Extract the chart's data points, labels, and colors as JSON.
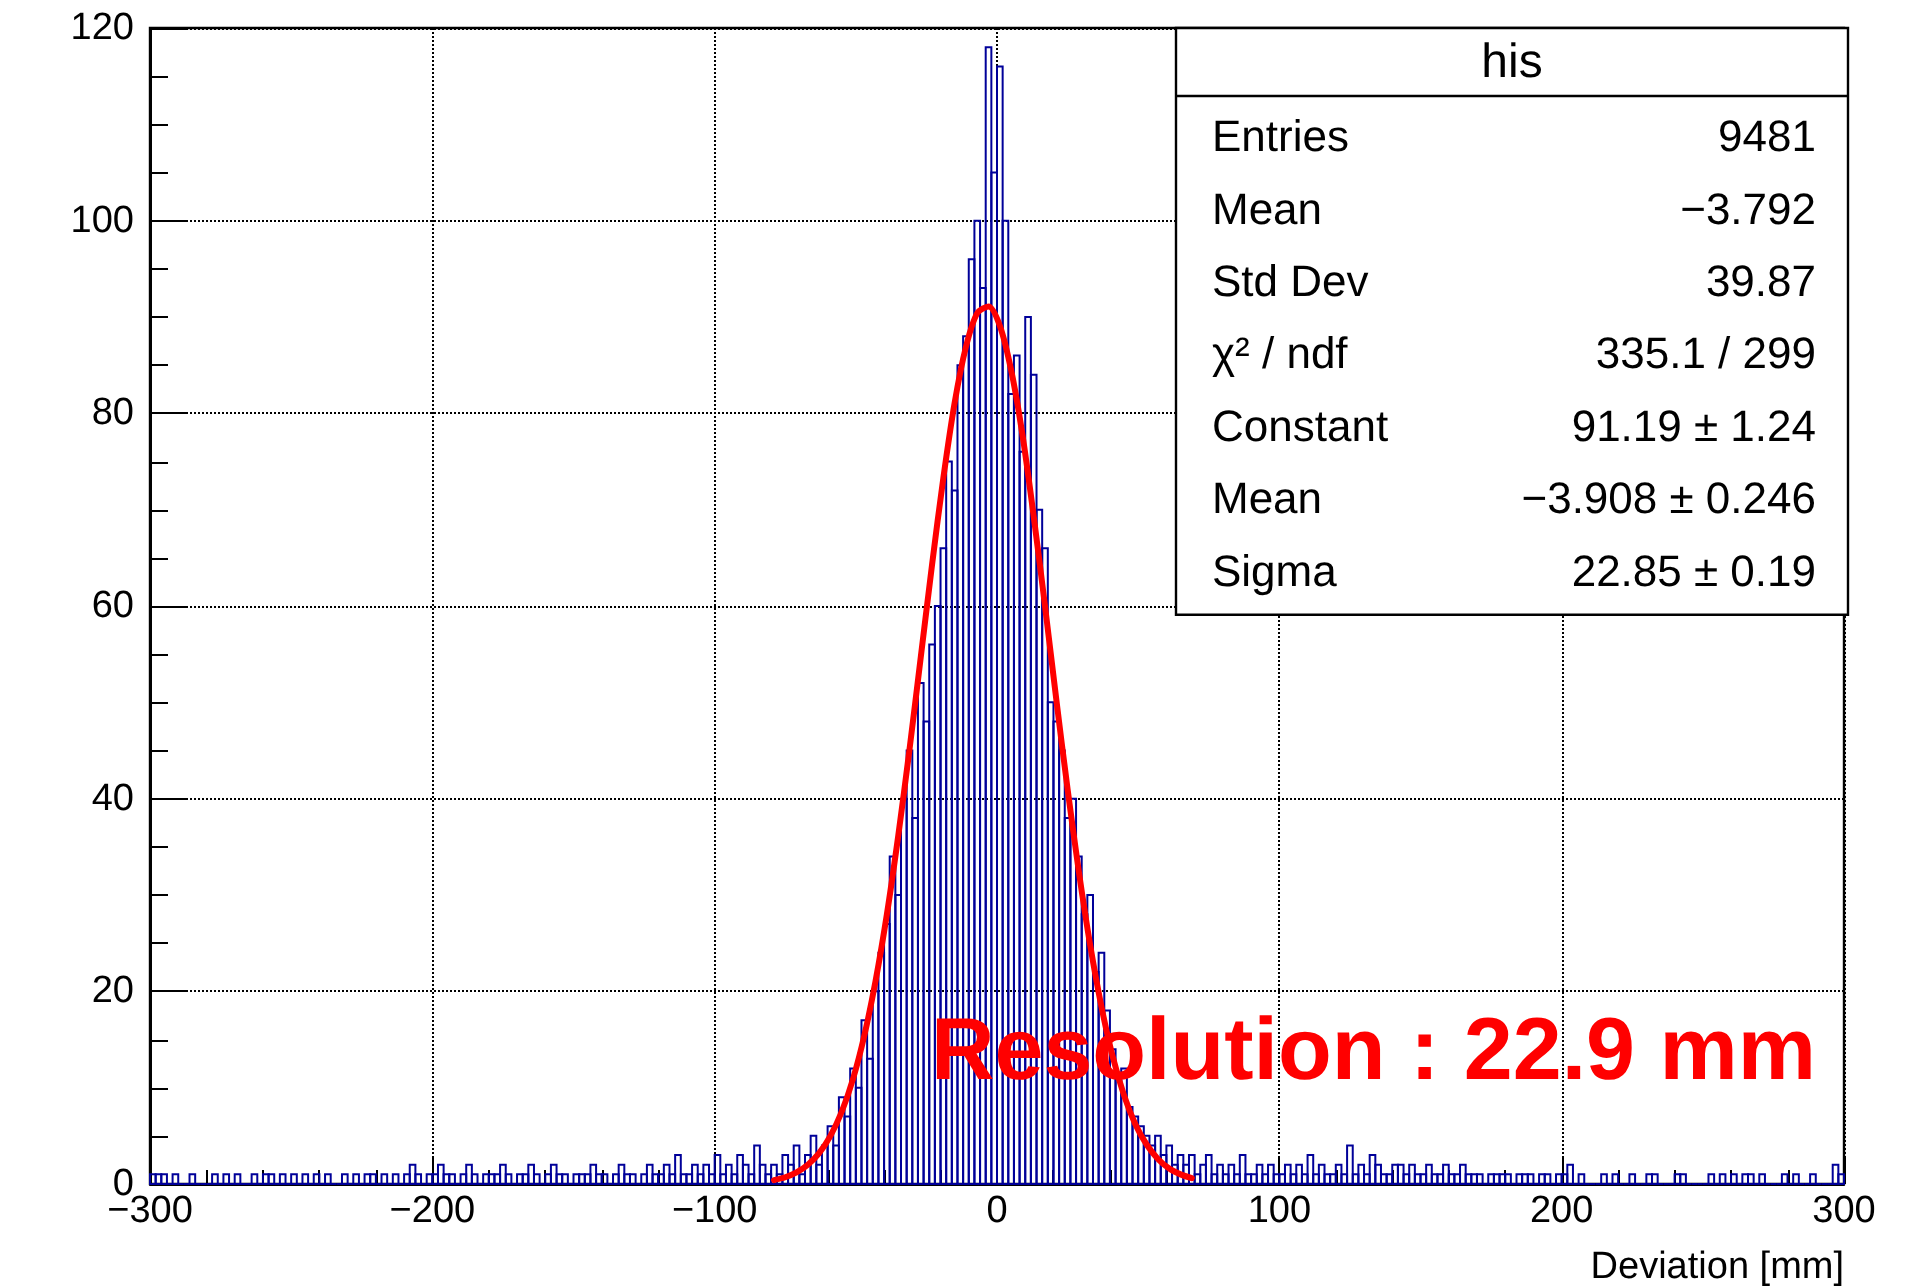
{
  "chart_data": {
    "type": "histogram",
    "xlabel": "Deviation [mm]",
    "bins": [
      -300,
      -298,
      -296,
      -294,
      -292,
      -290,
      -288,
      -286,
      -284,
      -282,
      -280,
      -278,
      -276,
      -274,
      -272,
      -270,
      -268,
      -266,
      -264,
      -262,
      -260,
      -258,
      -256,
      -254,
      -252,
      -250,
      -248,
      -246,
      -244,
      -242,
      -240,
      -238,
      -236,
      -234,
      -232,
      -230,
      -228,
      -226,
      -224,
      -222,
      -220,
      -218,
      -216,
      -214,
      -212,
      -210,
      -208,
      -206,
      -204,
      -202,
      -200,
      -198,
      -196,
      -194,
      -192,
      -190,
      -188,
      -186,
      -184,
      -182,
      -180,
      -178,
      -176,
      -174,
      -172,
      -170,
      -168,
      -166,
      -164,
      -162,
      -160,
      -158,
      -156,
      -154,
      -152,
      -150,
      -148,
      -146,
      -144,
      -142,
      -140,
      -138,
      -136,
      -134,
      -132,
      -130,
      -128,
      -126,
      -124,
      -122,
      -120,
      -118,
      -116,
      -114,
      -112,
      -110,
      -108,
      -106,
      -104,
      -102,
      -100,
      -98,
      -96,
      -94,
      -92,
      -90,
      -88,
      -86,
      -84,
      -82,
      -80,
      -78,
      -76,
      -74,
      -72,
      -70,
      -68,
      -66,
      -64,
      -62,
      -60,
      -58,
      -56,
      -54,
      -52,
      -50,
      -48,
      -46,
      -44,
      -42,
      -40,
      -38,
      -36,
      -34,
      -32,
      -30,
      -28,
      -26,
      -24,
      -22,
      -20,
      -18,
      -16,
      -14,
      -12,
      -10,
      -8,
      -6,
      -4,
      -2,
      0,
      2,
      4,
      6,
      8,
      10,
      12,
      14,
      16,
      18,
      20,
      22,
      24,
      26,
      28,
      30,
      32,
      34,
      36,
      38,
      40,
      42,
      44,
      46,
      48,
      50,
      52,
      54,
      56,
      58,
      60,
      62,
      64,
      66,
      68,
      70,
      72,
      74,
      76,
      78,
      80,
      82,
      84,
      86,
      88,
      90,
      92,
      94,
      96,
      98,
      100,
      102,
      104,
      106,
      108,
      110,
      112,
      114,
      116,
      118,
      120,
      122,
      124,
      126,
      128,
      130,
      132,
      134,
      136,
      138,
      140,
      142,
      144,
      146,
      148,
      150,
      152,
      154,
      156,
      158,
      160,
      162,
      164,
      166,
      168,
      170,
      172,
      174,
      176,
      178,
      180,
      182,
      184,
      186,
      188,
      190,
      192,
      194,
      196,
      198,
      200,
      202,
      204,
      206,
      208,
      210,
      212,
      214,
      216,
      218,
      220,
      222,
      224,
      226,
      228,
      230,
      232,
      234,
      236,
      238,
      240,
      242,
      244,
      246,
      248,
      250,
      252,
      254,
      256,
      258,
      260,
      262,
      264,
      266,
      268,
      270,
      272,
      274,
      276,
      278,
      280,
      282,
      284,
      286,
      288,
      290,
      292,
      294,
      296,
      298,
      300
    ],
    "series": [
      {
        "color": "#000099",
        "values": [
          1,
          1,
          1,
          0,
          1,
          0,
          0,
          1,
          0,
          0,
          0,
          1,
          0,
          1,
          0,
          1,
          0,
          0,
          1,
          0,
          1,
          1,
          0,
          1,
          0,
          1,
          0,
          1,
          0,
          1,
          0,
          1,
          0,
          0,
          1,
          0,
          1,
          0,
          1,
          1,
          0,
          1,
          0,
          1,
          0,
          1,
          2,
          1,
          0,
          1,
          1,
          2,
          1,
          1,
          0,
          1,
          2,
          1,
          0,
          1,
          1,
          1,
          2,
          1,
          0,
          1,
          1,
          2,
          1,
          0,
          1,
          2,
          1,
          1,
          0,
          1,
          1,
          1,
          2,
          1,
          1,
          0,
          1,
          2,
          1,
          1,
          0,
          1,
          2,
          1,
          1,
          2,
          1,
          3,
          1,
          1,
          2,
          1,
          2,
          1,
          3,
          1,
          2,
          1,
          3,
          2,
          1,
          4,
          2,
          1,
          2,
          1,
          3,
          2,
          4,
          1,
          3,
          5,
          2,
          4,
          6,
          4,
          9,
          7,
          12,
          10,
          17,
          13,
          20,
          24,
          27,
          34,
          30,
          40,
          45,
          38,
          52,
          48,
          56,
          60,
          66,
          75,
          72,
          85,
          88,
          96,
          100,
          93,
          118,
          105,
          116,
          100,
          82,
          86,
          76,
          90,
          84,
          70,
          66,
          50,
          48,
          45,
          38,
          40,
          34,
          28,
          30,
          22,
          24,
          18,
          14,
          11,
          12,
          8,
          7,
          6,
          5,
          4,
          5,
          3,
          4,
          2,
          3,
          2,
          3,
          1,
          2,
          3,
          1,
          2,
          1,
          2,
          1,
          3,
          1,
          1,
          2,
          1,
          2,
          1,
          1,
          2,
          1,
          2,
          1,
          3,
          1,
          2,
          1,
          1,
          2,
          1,
          4,
          1,
          2,
          1,
          3,
          2,
          1,
          1,
          2,
          2,
          1,
          2,
          1,
          1,
          2,
          1,
          1,
          2,
          1,
          1,
          2,
          1,
          1,
          1,
          0,
          1,
          1,
          1,
          1,
          0,
          1,
          1,
          1,
          0,
          1,
          1,
          0,
          1,
          1,
          2,
          0,
          1,
          0,
          0,
          0,
          1,
          0,
          1,
          0,
          0,
          1,
          0,
          0,
          1,
          1,
          0,
          0,
          0,
          1,
          1,
          0,
          0,
          0,
          0,
          1,
          0,
          1,
          0,
          1,
          0,
          1,
          1,
          0,
          1,
          0,
          0,
          0,
          1,
          0,
          1,
          0,
          0,
          1,
          0,
          0,
          0,
          2,
          1
        ]
      },
      {
        "type": "line",
        "color": "#ff0000",
        "x": [
          -79,
          -75,
          -71,
          -67,
          -63,
          -59,
          -55,
          -51,
          -47,
          -43,
          -39,
          -35,
          -31,
          -27,
          -23,
          -19,
          -15,
          -11,
          -7,
          -3,
          1,
          5,
          9,
          13,
          17,
          21,
          25,
          29,
          33,
          37,
          41,
          45,
          49,
          53,
          57,
          61,
          65,
          69
        ],
        "values": [
          0.4,
          0.7,
          1.2,
          2.0,
          3.2,
          5.0,
          7.5,
          10.9,
          15.4,
          21.1,
          28.0,
          36.1,
          45.1,
          54.7,
          64.3,
          73.3,
          81.1,
          86.9,
          90.4,
          91.1,
          89.1,
          84.5,
          77.8,
          69.3,
          60.0,
          50.3,
          41.0,
          32.4,
          24.8,
          18.4,
          13.2,
          9.2,
          6.2,
          4.1,
          2.6,
          1.6,
          1.0,
          0.6
        ]
      }
    ],
    "xlim": [
      -300,
      300
    ],
    "xticks": [
      -300,
      -200,
      -100,
      0,
      100,
      200,
      300
    ],
    "ylim": [
      0,
      120
    ],
    "yticks": [
      0,
      20,
      40,
      60,
      80,
      100,
      120
    ],
    "grid": true,
    "annotations": [
      "his",
      "Entries",
      "9481",
      "Mean",
      "−3.792",
      "Std Dev",
      "39.87",
      "χ² / ndf",
      "335.1 / 299",
      "Constant",
      "91.19 ± 1.24",
      "Mean",
      "−3.908 ± 0.246",
      "Sigma",
      "22.85 ± 0.19",
      "Resolution : 22.9 mm"
    ]
  }
}
